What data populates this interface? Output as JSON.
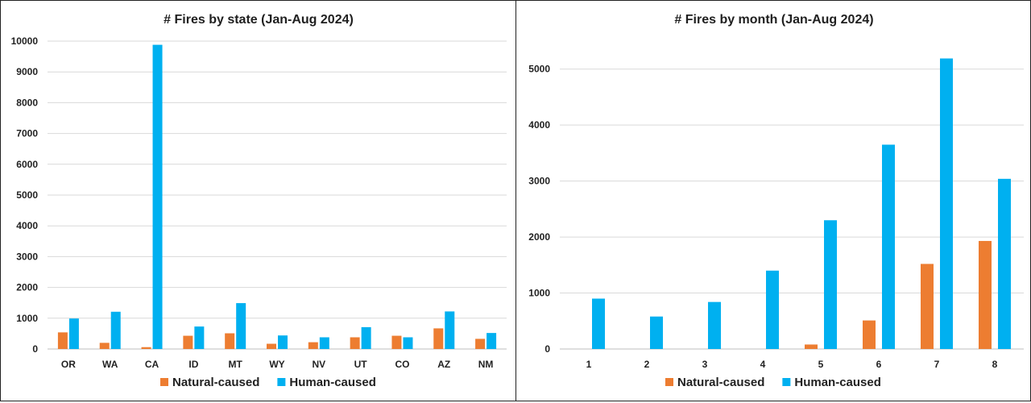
{
  "colors": {
    "natural": "#ED7D31",
    "human": "#00B0F0"
  },
  "chart_data": [
    {
      "type": "bar",
      "title": "# Fires by state (Jan-Aug 2024)",
      "categories": [
        "OR",
        "WA",
        "CA",
        "ID",
        "MT",
        "WY",
        "NV",
        "UT",
        "CO",
        "AZ",
        "NM"
      ],
      "series": [
        {
          "name": "Natural-caused",
          "values": [
            540,
            200,
            60,
            430,
            510,
            170,
            220,
            380,
            430,
            670,
            330
          ]
        },
        {
          "name": "Human-caused",
          "values": [
            990,
            1210,
            9880,
            730,
            1490,
            440,
            380,
            710,
            380,
            1220,
            520
          ]
        }
      ],
      "ylim": [
        0,
        10000
      ],
      "yticks": [
        0,
        1000,
        2000,
        3000,
        4000,
        5000,
        6000,
        7000,
        8000,
        9000,
        10000
      ],
      "grid": true,
      "legend": "bottom"
    },
    {
      "type": "bar",
      "title": "# Fires by month (Jan-Aug 2024)",
      "categories": [
        "1",
        "2",
        "3",
        "4",
        "5",
        "6",
        "7",
        "8"
      ],
      "series": [
        {
          "name": "Natural-caused",
          "values": [
            0,
            0,
            0,
            0,
            80,
            510,
            1520,
            1930
          ]
        },
        {
          "name": "Human-caused",
          "values": [
            900,
            580,
            840,
            1400,
            2300,
            3650,
            5190,
            3040
          ]
        }
      ],
      "ylim": [
        0,
        5500
      ],
      "yticks": [
        0,
        1000,
        2000,
        3000,
        4000,
        5000
      ],
      "grid": true,
      "legend": "bottom"
    }
  ]
}
